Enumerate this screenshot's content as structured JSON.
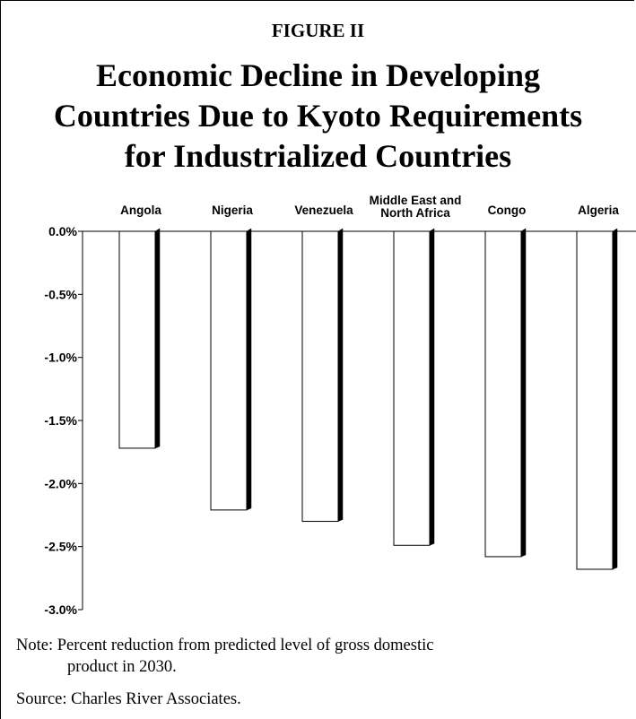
{
  "figure_label": "FIGURE II",
  "title_lines": [
    "Economic Decline in Developing",
    "Countries Due to Kyoto Requirements",
    "for Industrialized Countries"
  ],
  "chart_data": {
    "type": "bar",
    "title": "Economic Decline in Developing Countries Due to Kyoto Requirements for Industrialized Countries",
    "categories": [
      "Angola",
      "Nigeria",
      "Venezuela",
      "Middle East and North Africa",
      "Congo",
      "Algeria"
    ],
    "category_label_lines": [
      [
        "Angola"
      ],
      [
        "Nigeria"
      ],
      [
        "Venezuela"
      ],
      [
        "Middle East and",
        "North Africa"
      ],
      [
        "Congo"
      ],
      [
        "Algeria"
      ]
    ],
    "values": [
      -1.72,
      -2.21,
      -2.3,
      -2.49,
      -2.58,
      -2.68
    ],
    "unit": "%",
    "ylim": [
      -3.0,
      0.0
    ],
    "yticks": [
      0.0,
      -0.5,
      -1.0,
      -1.5,
      -2.0,
      -2.5,
      -3.0
    ],
    "ytick_labels": [
      "0.0%",
      "-0.5%",
      "-1.0%",
      "-1.5%",
      "-2.0%",
      "-2.5%",
      "-3.0%"
    ],
    "xlabel": "",
    "ylabel": "",
    "grid": false,
    "bar_fill": "#ffffff",
    "bar_shadow": "#000000",
    "category_labels_position": "top"
  },
  "note": {
    "line1": "Note: Percent reduction from predicted level of gross domestic",
    "line2": "product in 2030."
  },
  "source": "Source: Charles River Associates."
}
